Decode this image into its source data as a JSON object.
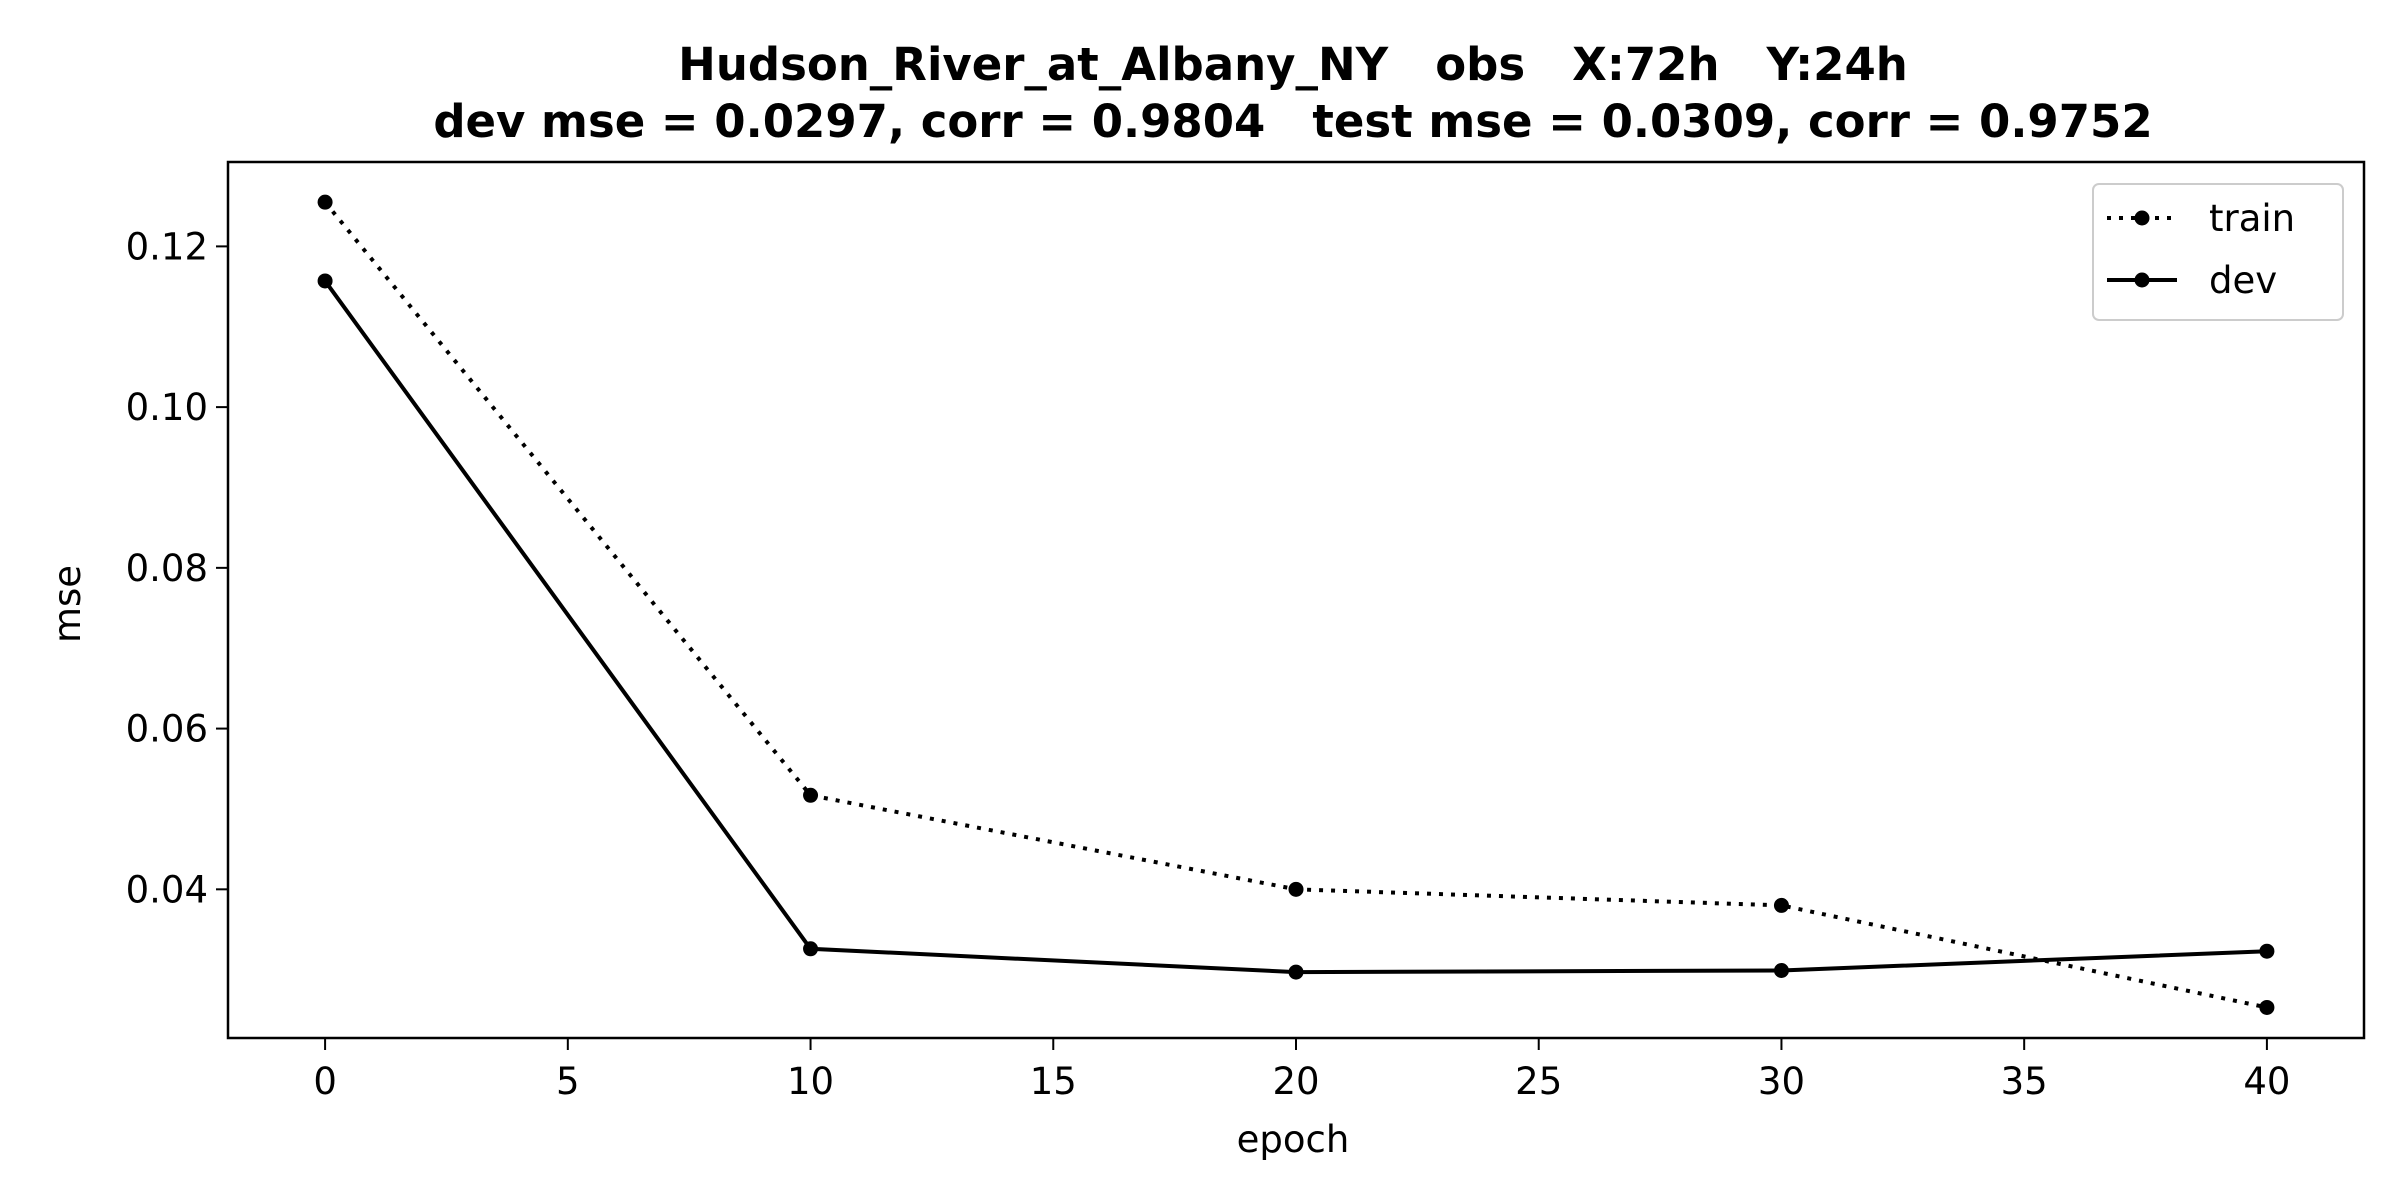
{
  "chart_data": {
    "type": "line",
    "title": "Hudson_River_at_Albany_NY   obs   X:72h   Y:24h",
    "subtitle": "dev mse = 0.0297, corr = 0.9804   test mse = 0.0309, corr = 0.9752",
    "xlabel": "epoch",
    "ylabel": "mse",
    "xlim": [
      -2,
      42
    ],
    "ylim": [
      0.0215,
      0.1305
    ],
    "xticks": [
      0,
      5,
      10,
      15,
      20,
      25,
      30,
      35,
      40
    ],
    "yticks": [
      0.04,
      0.06,
      0.08,
      0.1,
      0.12
    ],
    "x": [
      0,
      10,
      20,
      30,
      40
    ],
    "series": [
      {
        "name": "train",
        "style": "dotted",
        "values": [
          0.1255,
          0.0517,
          0.04,
          0.038,
          0.0253
        ]
      },
      {
        "name": "dev",
        "style": "solid",
        "values": [
          0.1157,
          0.0326,
          0.0297,
          0.0299,
          0.0323
        ]
      }
    ],
    "legend_position": "top-right",
    "grid": false,
    "color": "#000000"
  }
}
